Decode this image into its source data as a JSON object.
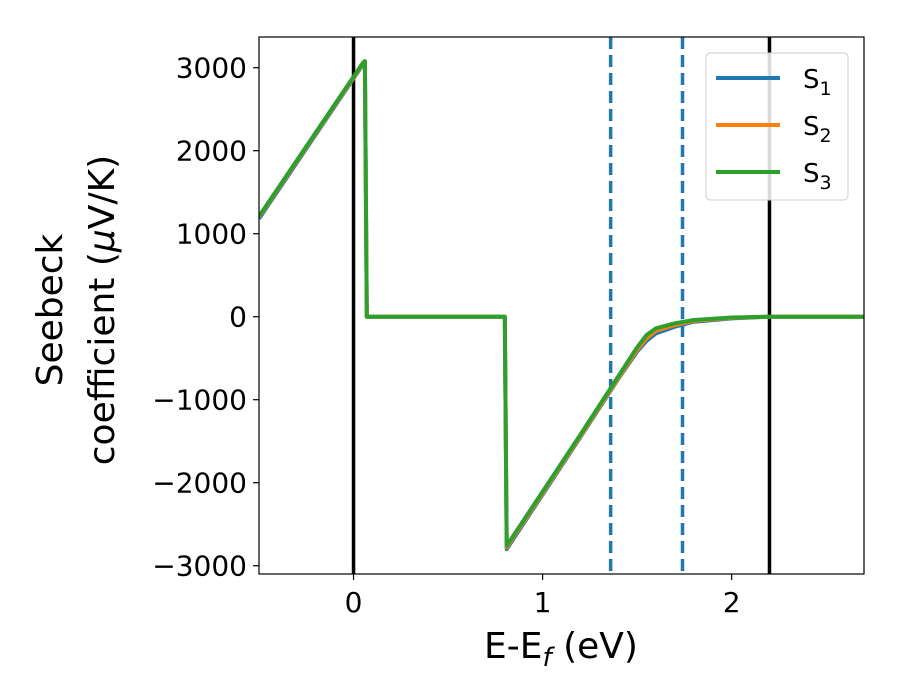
{
  "chart_data": {
    "type": "line",
    "xlabel_main": "E-E",
    "xlabel_sub": "f",
    "xlabel_units": " (eV)",
    "ylabel_line1": "Seebeck",
    "ylabel_line2": "coefficient  (",
    "ylabel_mu": "μ",
    "ylabel_units": "V/K)",
    "xlim": [
      -0.5,
      2.7
    ],
    "ylim": [
      -3100,
      3370
    ],
    "xticks": [
      0,
      1,
      2
    ],
    "xtick_labels": [
      "0",
      "1",
      "2"
    ],
    "yticks": [
      3000,
      2000,
      1000,
      0,
      -1000,
      -2000,
      -3000
    ],
    "ytick_labels": [
      "3000",
      "2000",
      "1000",
      "0",
      "−1000",
      "−2000",
      "−3000"
    ],
    "vlines_solid": [
      0.0,
      2.2
    ],
    "vlines_dashed": [
      1.36,
      1.74
    ],
    "colors": {
      "S1": "#1f77b4",
      "S2": "#ff7f0e",
      "S3": "#2ca02c",
      "solid_vline": "#000000",
      "dashed_vline": "#1f77b4"
    },
    "legend": {
      "position": "top-right",
      "entries": [
        {
          "base": "S",
          "sub": "1"
        },
        {
          "base": "S",
          "sub": "2"
        },
        {
          "base": "S",
          "sub": "3"
        }
      ]
    },
    "series": [
      {
        "name": "S1",
        "color": "#1f77b4",
        "x": [
          -0.5,
          0.05,
          0.06,
          0.07,
          0.79,
          0.8,
          0.81,
          1.2,
          1.4,
          1.5,
          1.55,
          1.6,
          1.7,
          1.8,
          2.0,
          2.2,
          2.7
        ],
        "y": [
          1180,
          3040,
          3060,
          0,
          0,
          0,
          -2800,
          -1450,
          -750,
          -420,
          -290,
          -200,
          -120,
          -60,
          -20,
          0,
          0
        ]
      },
      {
        "name": "S2",
        "color": "#ff7f0e",
        "x": [
          -0.5,
          0.05,
          0.06,
          0.07,
          0.79,
          0.8,
          0.81,
          1.2,
          1.4,
          1.5,
          1.55,
          1.6,
          1.7,
          1.8,
          2.0,
          2.2,
          2.7
        ],
        "y": [
          1200,
          3050,
          3070,
          0,
          0,
          0,
          -2780,
          -1440,
          -740,
          -400,
          -260,
          -170,
          -100,
          -50,
          -15,
          0,
          0
        ]
      },
      {
        "name": "S3",
        "color": "#2ca02c",
        "x": [
          -0.5,
          0.05,
          0.06,
          0.07,
          0.79,
          0.8,
          0.81,
          1.2,
          1.4,
          1.5,
          1.55,
          1.6,
          1.7,
          1.8,
          2.0,
          2.2,
          2.7
        ],
        "y": [
          1210,
          3060,
          3080,
          0,
          0,
          0,
          -2760,
          -1420,
          -720,
          -370,
          -220,
          -140,
          -80,
          -40,
          -10,
          0,
          0
        ]
      }
    ]
  }
}
